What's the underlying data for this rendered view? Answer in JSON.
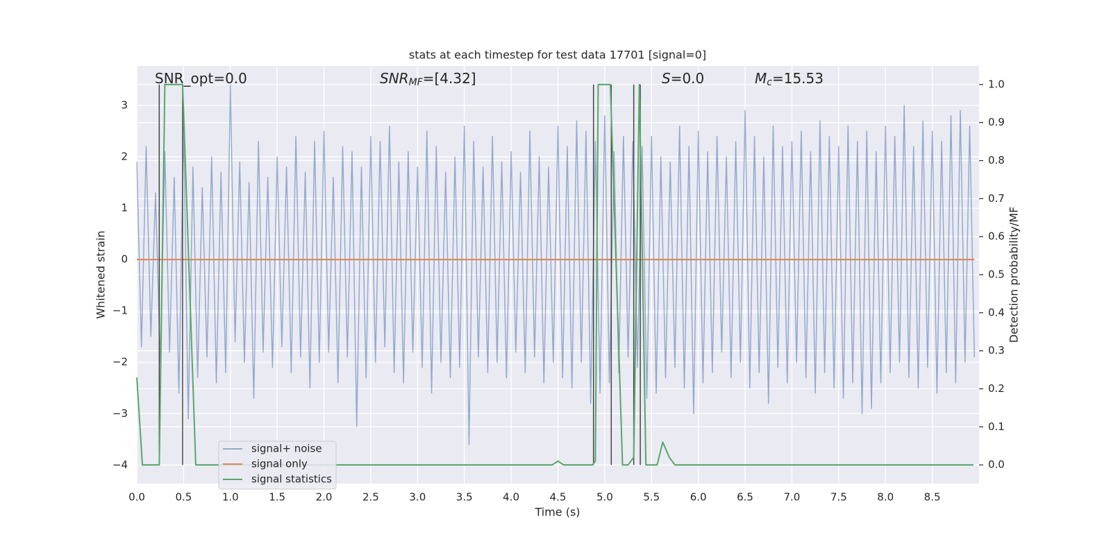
{
  "chart_data": {
    "type": "line",
    "title": "stats at each timestep for test data 17701 [signal=0]",
    "xlabel": "Time (s)",
    "ylabel": "Whitened strain",
    "y2label": "Detection probability/MF",
    "annotations": [
      {
        "base": "SNR_opt=0.0"
      },
      {
        "base": "SNR",
        "sub": "MF",
        "rest": "=[4.32]"
      },
      {
        "base": "S",
        "rest": "=0.0"
      },
      {
        "base": "M",
        "sub": "c",
        "rest": "=15.53"
      }
    ],
    "xlim": [
      0,
      9.0
    ],
    "ylim": [
      -4.36,
      3.77
    ],
    "y2lim": [
      -0.049,
      1.049
    ],
    "xticks": [
      {
        "value": 0,
        "label": "0.0"
      },
      0.5,
      {
        "value": 1,
        "label": "1.0"
      },
      1.5,
      {
        "value": 2,
        "label": "2.0"
      },
      2.5,
      {
        "value": 3,
        "label": "3.0"
      },
      3.5,
      {
        "value": 4,
        "label": "4.0"
      },
      4.5,
      {
        "value": 5,
        "label": "5.0"
      },
      5.5,
      {
        "value": 6,
        "label": "6.0"
      },
      6.5,
      {
        "value": 7,
        "label": "7.0"
      },
      7.5,
      {
        "value": 8,
        "label": "8.0"
      },
      8.5
    ],
    "yticks": [
      {
        "value": -4,
        "label": "−4"
      },
      {
        "value": -3,
        "label": "−3"
      },
      {
        "value": -2,
        "label": "−2"
      },
      {
        "value": -1,
        "label": "−1"
      },
      0,
      1,
      2,
      3
    ],
    "y2ticks": [
      {
        "value": 0,
        "label": "0.0"
      },
      0.1,
      0.2,
      0.3,
      0.4,
      0.5,
      0.6,
      0.7,
      0.8,
      0.9,
      {
        "value": 1,
        "label": "1.0"
      }
    ],
    "grid": true,
    "legend": "lower left",
    "vlines": {
      "color": "#444444",
      "x": [
        0.24,
        0.49,
        4.88,
        5.07,
        5.31,
        5.38
      ],
      "range": [
        0,
        1
      ]
    },
    "series": [
      {
        "name": "signal+ noise",
        "color": "#4c72b0",
        "axis": "y",
        "x": [
          0,
          0.05,
          0.1,
          0.15,
          0.2,
          0.25,
          0.3,
          0.35,
          0.4,
          0.45,
          0.5,
          0.55,
          0.6,
          0.65,
          0.7,
          0.75,
          0.8,
          0.85,
          0.9,
          0.95,
          1,
          1.05,
          1.1,
          1.15,
          1.2,
          1.25,
          1.3,
          1.35,
          1.4,
          1.45,
          1.5,
          1.55,
          1.6,
          1.65,
          1.7,
          1.75,
          1.8,
          1.85,
          1.9,
          1.95,
          2,
          2.05,
          2.1,
          2.15,
          2.2,
          2.25,
          2.3,
          2.35,
          2.4,
          2.45,
          2.5,
          2.55,
          2.6,
          2.65,
          2.7,
          2.75,
          2.8,
          2.85,
          2.9,
          2.95,
          3,
          3.05,
          3.1,
          3.15,
          3.2,
          3.25,
          3.3,
          3.35,
          3.4,
          3.45,
          3.5,
          3.55,
          3.6,
          3.65,
          3.7,
          3.75,
          3.8,
          3.85,
          3.9,
          3.95,
          4,
          4.05,
          4.1,
          4.15,
          4.2,
          4.25,
          4.3,
          4.35,
          4.4,
          4.45,
          4.5,
          4.55,
          4.6,
          4.65,
          4.7,
          4.75,
          4.8,
          4.85,
          4.9,
          4.95,
          5,
          5.05,
          5.1,
          5.15,
          5.2,
          5.25,
          5.3,
          5.35,
          5.4,
          5.45,
          5.5,
          5.55,
          5.6,
          5.65,
          5.7,
          5.75,
          5.8,
          5.85,
          5.9,
          5.95,
          6,
          6.05,
          6.1,
          6.15,
          6.2,
          6.25,
          6.3,
          6.35,
          6.4,
          6.45,
          6.5,
          6.55,
          6.6,
          6.65,
          6.7,
          6.75,
          6.8,
          6.85,
          6.9,
          6.95,
          7,
          7.05,
          7.1,
          7.15,
          7.2,
          7.25,
          7.3,
          7.35,
          7.4,
          7.45,
          7.5,
          7.55,
          7.6,
          7.65,
          7.7,
          7.75,
          7.8,
          7.85,
          7.9,
          7.95,
          8,
          8.05,
          8.1,
          8.15,
          8.2,
          8.25,
          8.3,
          8.35,
          8.4,
          8.45,
          8.5,
          8.55,
          8.6,
          8.65,
          8.7,
          8.75,
          8.8,
          8.85,
          8.9,
          8.95
        ],
        "values": [
          1.9,
          -1.7,
          2.2,
          -1.5,
          1.3,
          -2.0,
          2.1,
          -1.8,
          1.6,
          -2.6,
          2.6,
          -3.1,
          1.8,
          -2.3,
          1.4,
          -1.9,
          2.0,
          -2.4,
          1.7,
          -2.2,
          3.4,
          -1.6,
          1.9,
          -2.0,
          1.5,
          -2.7,
          2.3,
          -1.8,
          1.6,
          -2.1,
          2.0,
          -1.7,
          1.8,
          -2.2,
          2.4,
          -1.9,
          1.7,
          -2.5,
          2.3,
          -2.0,
          2.5,
          -1.8,
          1.6,
          -2.4,
          2.2,
          -1.9,
          2.1,
          -3.25,
          1.8,
          -2.3,
          2.4,
          -2.0,
          2.3,
          -1.7,
          2.6,
          -2.2,
          1.9,
          -2.4,
          2.1,
          -1.8,
          1.8,
          -2.1,
          2.5,
          -2.6,
          2.2,
          -2.0,
          1.7,
          -2.3,
          2.0,
          -2.1,
          2.6,
          -3.6,
          2.3,
          -1.9,
          1.8,
          -2.2,
          2.4,
          -2.0,
          1.9,
          -2.3,
          2.1,
          -1.8,
          1.7,
          -2.2,
          2.5,
          -1.9,
          2.0,
          -2.4,
          1.8,
          -2.0,
          2.6,
          -2.3,
          2.2,
          -2.5,
          2.7,
          -2.0,
          2.5,
          -2.8,
          2.3,
          -2.6,
          2.8,
          -2.4,
          2.1,
          -2.2,
          2.4,
          -1.9,
          2.3,
          -2.1,
          2.2,
          -2.7,
          2.4,
          -2.6,
          2.0,
          -2.3,
          1.9,
          -2.1,
          2.6,
          -2.5,
          2.2,
          -3.0,
          2.5,
          -2.4,
          2.1,
          -2.2,
          2.4,
          -1.8,
          2.0,
          -2.3,
          2.3,
          -2.0,
          2.9,
          -2.5,
          2.4,
          -2.2,
          2.0,
          -2.8,
          2.6,
          -2.1,
          2.2,
          -2.4,
          2.3,
          -2.0,
          2.5,
          -2.3,
          2.1,
          -2.6,
          2.7,
          -2.2,
          2.4,
          -2.5,
          2.2,
          -2.7,
          2.6,
          -2.4,
          2.3,
          -3.0,
          2.5,
          -2.9,
          2.1,
          -2.4,
          2.6,
          -2.2,
          2.4,
          -2.0,
          3.0,
          -2.3,
          2.2,
          -2.5,
          2.7,
          -2.1,
          2.5,
          -2.6,
          2.3,
          -2.2,
          2.8,
          -2.4,
          2.9,
          -2.0,
          2.6,
          -1.9
        ]
      },
      {
        "name": "signal only",
        "color": "#dd8452",
        "axis": "y",
        "x": [
          0,
          8.95
        ],
        "values": [
          0,
          0
        ]
      },
      {
        "name": "signal statistics",
        "color": "#55a868",
        "axis": "y2",
        "x": [
          0,
          0.06,
          0.24,
          0.3,
          0.49,
          0.63,
          4.44,
          4.5,
          4.56,
          4.87,
          4.9,
          4.93,
          5.06,
          5.19,
          5.25,
          5.31,
          5.37,
          5.44,
          5.56,
          5.62,
          5.69,
          5.75,
          8.94
        ],
        "values": [
          0.23,
          0,
          0,
          1.0,
          1.0,
          0,
          0,
          0.01,
          0,
          0,
          0.01,
          1.0,
          1.0,
          0,
          0,
          0.02,
          1.0,
          0,
          0,
          0.06,
          0.02,
          0,
          0
        ]
      }
    ]
  }
}
